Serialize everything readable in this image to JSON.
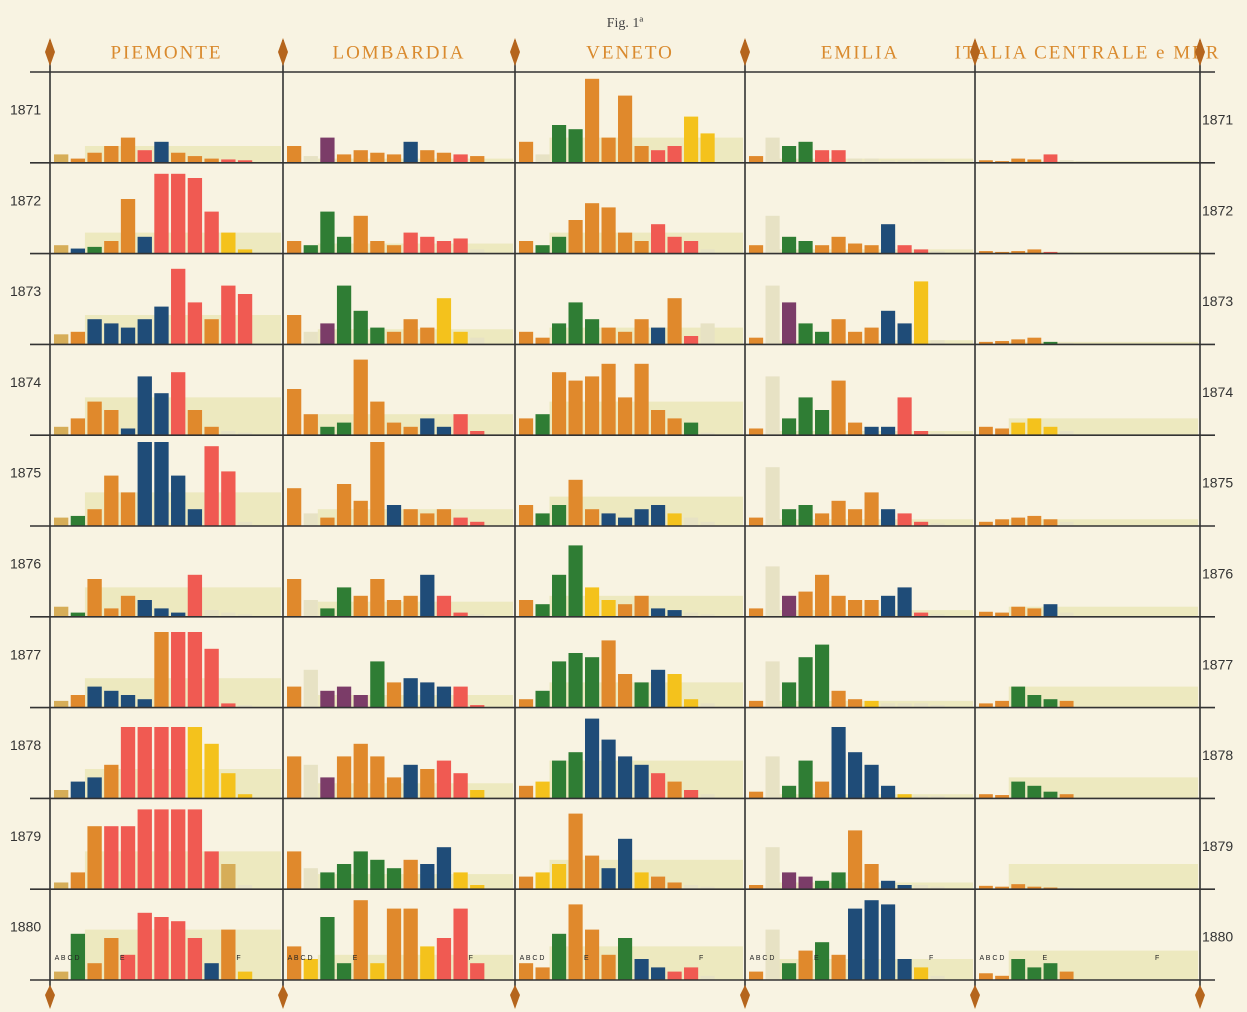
{
  "chart_data": {
    "type": "bar",
    "title": "Fig. 1ª",
    "years": [
      "1871",
      "1872",
      "1873",
      "1874",
      "1875",
      "1876",
      "1877",
      "1878",
      "1879",
      "1880"
    ],
    "segment_labels": [
      "A B C D",
      "E",
      "F"
    ],
    "palette": {
      "o": "#e0892c",
      "r": "#f05a52",
      "b": "#1f4c78",
      "g": "#2f7d34",
      "y": "#f4c21c",
      "p": "#7b3c68",
      "t": "#d6ad58",
      "l": "#e7e2c4"
    },
    "band_color": "#e6e3a8",
    "panels": [
      {
        "region": "PIEMONTE",
        "cells": [
          {
            "values": [
              10,
              5,
              12,
              20,
              30,
              15,
              25,
              12,
              8,
              5,
              4,
              3
            ],
            "colors": "toooorbooorr",
            "band": 20
          },
          {
            "values": [
              10,
              6,
              8,
              15,
              65,
              20,
              95,
              95,
              90,
              50,
              25,
              5
            ],
            "colors": "tbgoobrrrryy",
            "band": 25
          },
          {
            "values": [
              12,
              15,
              30,
              25,
              20,
              30,
              45,
              90,
              50,
              30,
              70,
              60
            ],
            "colors": "tobbbbbrrorr",
            "band": 35
          },
          {
            "values": [
              10,
              20,
              40,
              30,
              8,
              70,
              50,
              75,
              30,
              10,
              5,
              3
            ],
            "colors": "tooobbbrooll",
            "band": 45
          },
          {
            "values": [
              10,
              12,
              20,
              60,
              40,
              100,
              100,
              60,
              20,
              95,
              65,
              5
            ],
            "colors": "tgooobbbbrrl",
            "band": 40
          },
          {
            "values": [
              12,
              5,
              45,
              10,
              25,
              20,
              10,
              5,
              50,
              8,
              5,
              3
            ],
            "colors": "tgooobbbrlll",
            "band": 35
          },
          {
            "values": [
              8,
              15,
              25,
              20,
              15,
              10,
              90,
              90,
              90,
              70,
              5,
              3
            ],
            "colors": "tobbbborrrrl",
            "band": 35
          },
          {
            "values": [
              10,
              20,
              25,
              40,
              85,
              85,
              85,
              85,
              85,
              65,
              30,
              5
            ],
            "colors": "tbborrrryyyy",
            "band": 35
          },
          {
            "values": [
              8,
              20,
              75,
              75,
              75,
              95,
              95,
              95,
              95,
              45,
              30,
              5
            ],
            "colors": "toorrrrrrrtl",
            "band": 45
          },
          {
            "values": [
              10,
              55,
              20,
              50,
              30,
              80,
              75,
              70,
              50,
              20,
              60,
              10
            ],
            "colors": "tgoorrrrrboy",
            "band": 60
          }
        ]
      },
      {
        "region": "LOMBARDIA",
        "cells": [
          {
            "values": [
              20,
              8,
              30,
              10,
              15,
              12,
              10,
              25,
              15,
              12,
              10,
              8
            ],
            "colors": "olpoooobooro",
            "band": 5
          },
          {
            "values": [
              15,
              10,
              50,
              20,
              45,
              15,
              10,
              25,
              20,
              15,
              18,
              5
            ],
            "colors": "ogggooorrrrl",
            "band": 12
          },
          {
            "values": [
              35,
              15,
              25,
              70,
              40,
              20,
              15,
              30,
              20,
              55,
              15,
              8
            ],
            "colors": "olpgggoooyyl",
            "band": 18
          },
          {
            "values": [
              55,
              25,
              10,
              15,
              90,
              40,
              15,
              10,
              20,
              10,
              25,
              5
            ],
            "colors": "ooggoooobbrr",
            "band": 25
          },
          {
            "values": [
              45,
              15,
              10,
              50,
              30,
              100,
              25,
              20,
              15,
              20,
              10,
              5
            ],
            "colors": "oloooobooorr",
            "band": 20
          },
          {
            "values": [
              45,
              20,
              10,
              35,
              25,
              45,
              20,
              25,
              50,
              25,
              5,
              3
            ],
            "colors": "olggoooobrrl",
            "band": 18
          },
          {
            "values": [
              25,
              45,
              20,
              25,
              15,
              55,
              30,
              35,
              30,
              25,
              25,
              3
            ],
            "colors": "olpppgobbbrr",
            "band": 15
          },
          {
            "values": [
              50,
              40,
              25,
              50,
              65,
              50,
              25,
              40,
              35,
              45,
              30,
              10
            ],
            "colors": "olpooooborry",
            "band": 18
          },
          {
            "values": [
              45,
              25,
              20,
              30,
              45,
              35,
              25,
              35,
              30,
              50,
              20,
              5
            ],
            "colors": "olgggggobbyy",
            "band": 18
          },
          {
            "values": [
              40,
              25,
              75,
              20,
              95,
              20,
              85,
              85,
              40,
              50,
              85,
              20
            ],
            "colors": "oyggoyooyrrr",
            "band": 30
          }
        ]
      },
      {
        "region": "VENETO",
        "cells": [
          {
            "values": [
              25,
              10,
              45,
              40,
              100,
              30,
              80,
              20,
              15,
              20,
              55,
              35
            ],
            "colors": "olggoooorryy",
            "band": 30
          },
          {
            "values": [
              15,
              10,
              20,
              40,
              60,
              55,
              25,
              15,
              35,
              20,
              15,
              5
            ],
            "colors": "oggooooorrrl",
            "band": 25
          },
          {
            "values": [
              15,
              8,
              25,
              50,
              30,
              20,
              15,
              30,
              20,
              55,
              10,
              25
            ],
            "colors": "oogggoooborl",
            "band": 20
          },
          {
            "values": [
              20,
              25,
              75,
              65,
              70,
              85,
              45,
              85,
              30,
              20,
              15,
              3
            ],
            "colors": "ogoooooooogl",
            "band": 40
          },
          {
            "values": [
              25,
              15,
              25,
              55,
              20,
              15,
              10,
              20,
              25,
              15,
              10,
              5
            ],
            "colors": "oggoobbbbyll",
            "band": 35
          },
          {
            "values": [
              20,
              15,
              50,
              85,
              35,
              20,
              15,
              25,
              10,
              8,
              5,
              3
            ],
            "colors": "ogggyyoobbll",
            "band": 25
          },
          {
            "values": [
              10,
              20,
              55,
              65,
              60,
              80,
              40,
              30,
              45,
              40,
              10,
              5
            ],
            "colors": "oggggoogbyyl",
            "band": 30
          },
          {
            "values": [
              15,
              20,
              45,
              55,
              95,
              70,
              50,
              40,
              30,
              20,
              10,
              5
            ],
            "colors": "oyggbbbbrorl",
            "band": 45
          },
          {
            "values": [
              15,
              20,
              30,
              90,
              40,
              25,
              60,
              20,
              15,
              8,
              5,
              3
            ],
            "colors": "oyyoobbyooll",
            "band": 35
          },
          {
            "values": [
              20,
              15,
              55,
              90,
              60,
              30,
              50,
              25,
              15,
              10,
              15,
              5
            ],
            "colors": "oogooogbbrrl",
            "band": 40
          }
        ]
      },
      {
        "region": "EMILIA",
        "cells": [
          {
            "values": [
              8,
              30,
              20,
              25,
              15,
              15,
              5,
              5,
              3,
              3,
              3,
              3
            ],
            "colors": "olggrrllllll",
            "band": 5
          },
          {
            "values": [
              10,
              45,
              20,
              15,
              10,
              20,
              12,
              10,
              35,
              10,
              5,
              3
            ],
            "colors": "olggoooobrrl",
            "band": 5
          },
          {
            "values": [
              8,
              70,
              50,
              25,
              15,
              30,
              15,
              20,
              40,
              25,
              75,
              5
            ],
            "colors": "olpggooobbyl",
            "band": 5
          },
          {
            "values": [
              8,
              70,
              20,
              45,
              30,
              65,
              15,
              10,
              10,
              45,
              5,
              3
            ],
            "colors": "olgggoobbrrl",
            "band": 5
          },
          {
            "values": [
              10,
              70,
              20,
              25,
              15,
              30,
              20,
              40,
              20,
              15,
              5,
              3
            ],
            "colors": "olggoooobrrl",
            "band": 8
          },
          {
            "values": [
              10,
              60,
              25,
              30,
              50,
              25,
              20,
              20,
              25,
              35,
              5,
              3
            ],
            "colors": "olpooooobbrl",
            "band": 8
          },
          {
            "values": [
              8,
              55,
              30,
              60,
              75,
              20,
              10,
              8,
              5,
              5,
              5,
              3
            ],
            "colors": "olgggooyllll",
            "band": 8
          },
          {
            "values": [
              8,
              50,
              15,
              45,
              20,
              85,
              55,
              40,
              15,
              5,
              3,
              3
            ],
            "colors": "olggobbbbyll",
            "band": 5
          },
          {
            "values": [
              5,
              50,
              20,
              15,
              10,
              20,
              70,
              30,
              10,
              5,
              5,
              3
            ],
            "colors": "olppggoobbll",
            "band": 8
          },
          {
            "values": [
              10,
              60,
              20,
              35,
              45,
              30,
              85,
              95,
              90,
              25,
              15,
              5
            ],
            "colors": "olgogobbbbyl",
            "band": 25
          }
        ]
      },
      {
        "region": "ITALIA CENTRALE e MER",
        "cells": [
          {
            "values": [
              3,
              2,
              5,
              4,
              10,
              3,
              2
            ],
            "colors": "oooorll",
            "band": 2
          },
          {
            "values": [
              3,
              2,
              3,
              5,
              2,
              2
            ],
            "colors": "oooorl",
            "band": 2
          },
          {
            "values": [
              3,
              4,
              6,
              8,
              3,
              2
            ],
            "colors": "oooogl",
            "band": 3
          },
          {
            "values": [
              10,
              8,
              15,
              20,
              10,
              5
            ],
            "colors": "ooyyyl",
            "band": 20
          },
          {
            "values": [
              5,
              8,
              10,
              12,
              8,
              5
            ],
            "colors": "oooool",
            "band": 8
          },
          {
            "values": [
              6,
              5,
              12,
              10,
              15,
              5
            ],
            "colors": "oooobl",
            "band": 12
          },
          {
            "values": [
              5,
              8,
              25,
              15,
              10,
              8
            ],
            "colors": "oogggo",
            "band": 25
          },
          {
            "values": [
              5,
              4,
              20,
              15,
              8,
              5
            ],
            "colors": "oogggo",
            "band": 25
          },
          {
            "values": [
              4,
              3,
              6,
              3,
              2,
              2
            ],
            "colors": "oooool",
            "band": 30
          },
          {
            "values": [
              8,
              5,
              25,
              15,
              20,
              10
            ],
            "colors": "oogggo",
            "band": 35
          }
        ]
      }
    ]
  }
}
